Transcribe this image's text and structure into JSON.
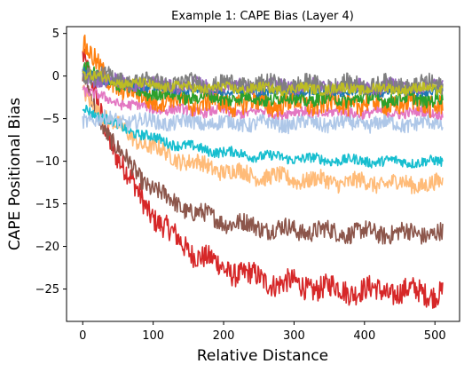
{
  "chart_data": {
    "type": "line",
    "title": "Example 1: CAPE Bias (Layer 4)",
    "xlabel": "Relative Distance",
    "ylabel": "CAPE Positional Bias",
    "xlim": [
      -23,
      535
    ],
    "ylim": [
      -28.8,
      5.8
    ],
    "xticks": [
      0,
      100,
      200,
      300,
      400,
      500
    ],
    "yticks": [
      5,
      0,
      -5,
      -10,
      -15,
      -20,
      -25
    ],
    "grid": false,
    "legend": "none",
    "x_range": [
      0,
      511
    ],
    "series": [
      {
        "color": "#d62728",
        "start": 2.5,
        "end": -25.5,
        "noise": 1.4,
        "decay": 90
      },
      {
        "color": "#8c564b",
        "start": 0.0,
        "end": -18.5,
        "noise": 1.1,
        "decay": 80
      },
      {
        "color": "#ffbb78",
        "start": -2.0,
        "end": -12.8,
        "noise": 1.0,
        "decay": 110
      },
      {
        "color": "#17becf",
        "start": -3.5,
        "end": -10.2,
        "noise": 0.6,
        "decay": 120
      },
      {
        "color": "#aec7e8",
        "start": -5.0,
        "end": -5.6,
        "noise": 0.9,
        "decay": 100
      },
      {
        "color": "#e377c2",
        "start": -1.5,
        "end": -4.3,
        "noise": 0.6,
        "decay": 60
      },
      {
        "color": "#ff7f0e",
        "start": 4.0,
        "end": -3.2,
        "noise": 1.3,
        "decay": 40
      },
      {
        "color": "#2ca02c",
        "start": 1.0,
        "end": -2.7,
        "noise": 0.8,
        "decay": 60
      },
      {
        "color": "#1f77b4",
        "start": 0.5,
        "end": -1.8,
        "noise": 0.5,
        "decay": 60
      },
      {
        "color": "#9467bd",
        "start": 0.0,
        "end": -1.2,
        "noise": 0.8,
        "decay": 60
      },
      {
        "color": "#7f7f7f",
        "start": 0.5,
        "end": -1.0,
        "noise": 1.0,
        "decay": 60
      },
      {
        "color": "#bcbd22",
        "start": 0.5,
        "end": -1.5,
        "noise": 0.6,
        "decay": 60
      }
    ]
  }
}
